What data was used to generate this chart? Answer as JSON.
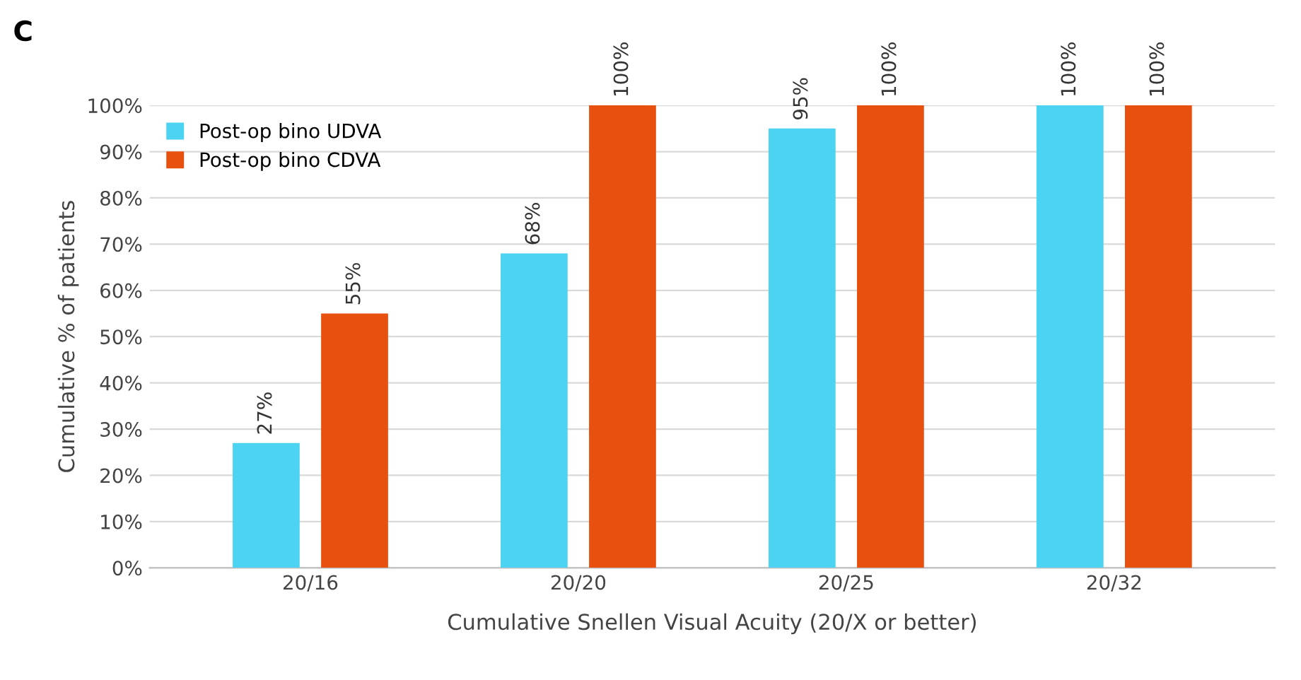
{
  "chart_data": {
    "type": "bar",
    "title": "C",
    "xlabel": "Cumulative Snellen Visual Acuity (20/X or better)",
    "ylabel": "Cumulative % of patients",
    "categories": [
      "20/16",
      "20/20",
      "20/25",
      "20/32"
    ],
    "series": [
      {
        "name": "Post-op bino UDVA",
        "color": "#4dd3f2",
        "values": [
          27,
          68,
          95,
          100
        ],
        "value_labels": [
          "27%",
          "68%",
          "95%",
          "100%"
        ]
      },
      {
        "name": "Post-op bino CDVA",
        "color": "#e8500f",
        "values": [
          55,
          100,
          100,
          100
        ],
        "value_labels": [
          "55%",
          "100%",
          "100%",
          "100%"
        ]
      }
    ],
    "ylim": [
      0,
      100
    ],
    "yticks": [
      {
        "value": 0,
        "label": "0%"
      },
      {
        "value": 10,
        "label": "10%"
      },
      {
        "value": 20,
        "label": "20%"
      },
      {
        "value": 30,
        "label": "30%"
      },
      {
        "value": 40,
        "label": "40%"
      },
      {
        "value": 50,
        "label": "50%"
      },
      {
        "value": 60,
        "label": "60%"
      },
      {
        "value": 70,
        "label": "70%"
      },
      {
        "value": 80,
        "label": "80%"
      },
      {
        "value": 90,
        "label": "90%"
      },
      {
        "value": 100,
        "label": "100%"
      }
    ],
    "grid": "y",
    "legend": "top left"
  }
}
